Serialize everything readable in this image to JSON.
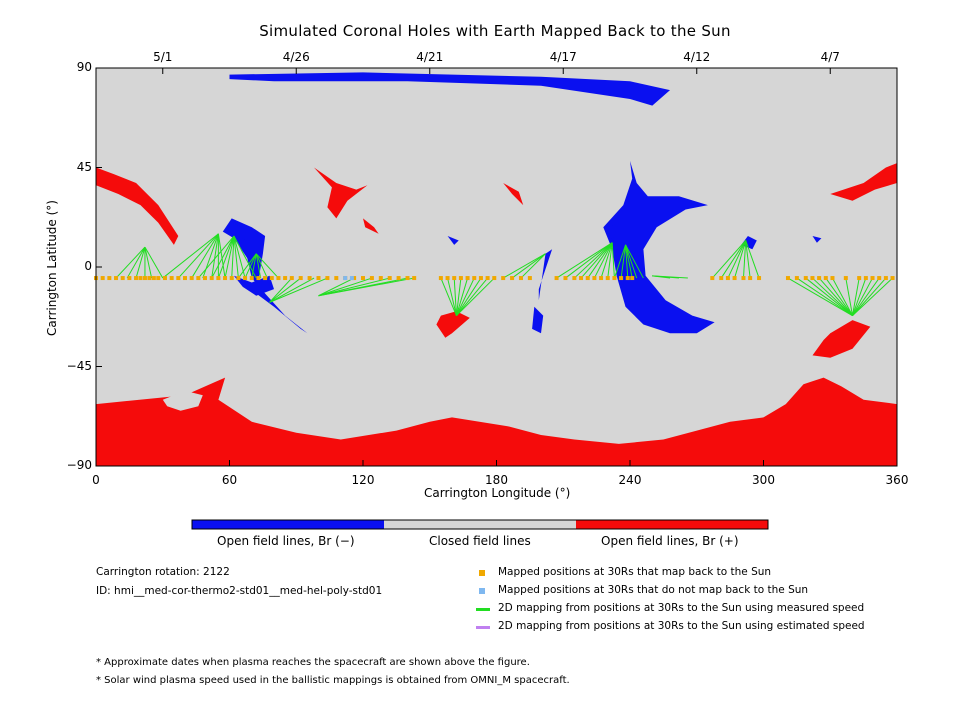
{
  "chart_data": {
    "type": "map",
    "title": "Simulated Coronal Holes with Earth Mapped Back to the Sun",
    "xlabel": "Carrington Longitude (°)",
    "ylabel": "Carrington Latitude (°)",
    "xlim": [
      0,
      360
    ],
    "ylim": [
      -90,
      90
    ],
    "x_ticks": [
      "0",
      "60",
      "120",
      "180",
      "240",
      "300",
      "360"
    ],
    "y_ticks": [
      "90",
      "45",
      "0",
      "−45",
      "−90"
    ],
    "top_date_ticks": [
      {
        "label": "5/1",
        "lon": 30
      },
      {
        "label": "4/26",
        "lon": 90
      },
      {
        "label": "4/21",
        "lon": 150
      },
      {
        "label": "4/17",
        "lon": 210
      },
      {
        "label": "4/12",
        "lon": 270
      },
      {
        "label": "4/7",
        "lon": 330
      }
    ],
    "colors": {
      "closed": "#d6d6d6",
      "open_neg": "#0a10f0",
      "open_pos": "#f50b0b",
      "mapped": "#f0a800",
      "unmapped": "#7fb8f0",
      "measured": "#22dd22",
      "estimated": "#c080f0"
    },
    "regions": {
      "closed": "Closed field lines",
      "open_neg": "Open field lines, Br (−)",
      "open_pos": "Open field lines, Br (+)"
    },
    "mapped_positions_lat": -5,
    "mapped_positions_lon": [
      0,
      3,
      6,
      9,
      12,
      15,
      18,
      20,
      22,
      24,
      26,
      28,
      31,
      34,
      37,
      40,
      43,
      46,
      49,
      52,
      55,
      58,
      61,
      64,
      67,
      70,
      73,
      76,
      79,
      82,
      85,
      88,
      92,
      96,
      100,
      104,
      108,
      112,
      116,
      120,
      124,
      128,
      132,
      136,
      140,
      143,
      155,
      158,
      161,
      164,
      167,
      170,
      173,
      176,
      179,
      183,
      187,
      191,
      195,
      207,
      211,
      215,
      218,
      221,
      224,
      227,
      230,
      233,
      236,
      239,
      241,
      277,
      281,
      284,
      287,
      291,
      294,
      298,
      311,
      315,
      319,
      322,
      325,
      328,
      331,
      337,
      343,
      346,
      349,
      352,
      355,
      358
    ],
    "unmapped_positions_lon": [
      112,
      115
    ],
    "footpoints": [
      {
        "lon": 22,
        "lat": 9,
        "from": [
          9,
          14,
          18,
          22,
          25,
          30
        ]
      },
      {
        "lon": 55,
        "lat": 15,
        "from": [
          30,
          37,
          43,
          48,
          52,
          55,
          58
        ]
      },
      {
        "lon": 62,
        "lat": 14,
        "from": [
          46,
          52,
          55,
          58,
          61,
          64,
          67,
          72
        ]
      },
      {
        "lon": 72,
        "lat": 6,
        "from": [
          64,
          67,
          70,
          74,
          77,
          82
        ]
      },
      {
        "lon": 78,
        "lat": -16,
        "from": [
          88,
          92,
          98,
          104
        ]
      },
      {
        "lon": 100,
        "lat": -13,
        "from": [
          116,
          124,
          132,
          140,
          143
        ]
      },
      {
        "lon": 162,
        "lat": -22,
        "from": [
          155,
          158,
          161,
          164,
          167,
          170,
          173,
          176,
          179
        ]
      },
      {
        "lon": 202,
        "lat": 6,
        "from": [
          183,
          187,
          191
        ]
      },
      {
        "lon": 232,
        "lat": 11,
        "from": [
          207,
          211,
          215,
          218,
          221,
          224,
          227,
          230,
          233
        ]
      },
      {
        "lon": 238,
        "lat": 10,
        "from": [
          233,
          236,
          239,
          241,
          243,
          246
        ]
      },
      {
        "lon": 250,
        "lat": -4,
        "from": [
          258,
          262,
          266
        ]
      },
      {
        "lon": 292,
        "lat": 12,
        "from": [
          277,
          281,
          284,
          287,
          291,
          294,
          298
        ]
      },
      {
        "lon": 340,
        "lat": -22,
        "from": [
          311,
          315,
          319,
          322,
          325,
          328,
          331,
          337,
          343,
          346,
          349,
          352,
          355,
          358
        ]
      }
    ],
    "legend": [
      {
        "kind": "mapped",
        "label": "Mapped positions at 30Rs that map back to the Sun"
      },
      {
        "kind": "unmapped",
        "label": "Mapped positions at 30Rs that do not map back to the Sun"
      },
      {
        "kind": "measured",
        "label": "2D mapping from positions at 30Rs to the Sun using measured speed"
      },
      {
        "kind": "estimated",
        "label": "2D mapping from positions at 30Rs to the Sun using estimated speed"
      }
    ]
  },
  "info": {
    "rotation": "Carrington rotation: 2122",
    "id": "ID: hmi__med-cor-thermo2-std01__med-hel-poly-std01"
  },
  "notes": [
    "* Approximate dates when plasma reaches the spacecraft are shown above the figure.",
    "* Solar wind plasma speed used in the ballistic mappings is obtained from OMNI_M spacecraft."
  ]
}
